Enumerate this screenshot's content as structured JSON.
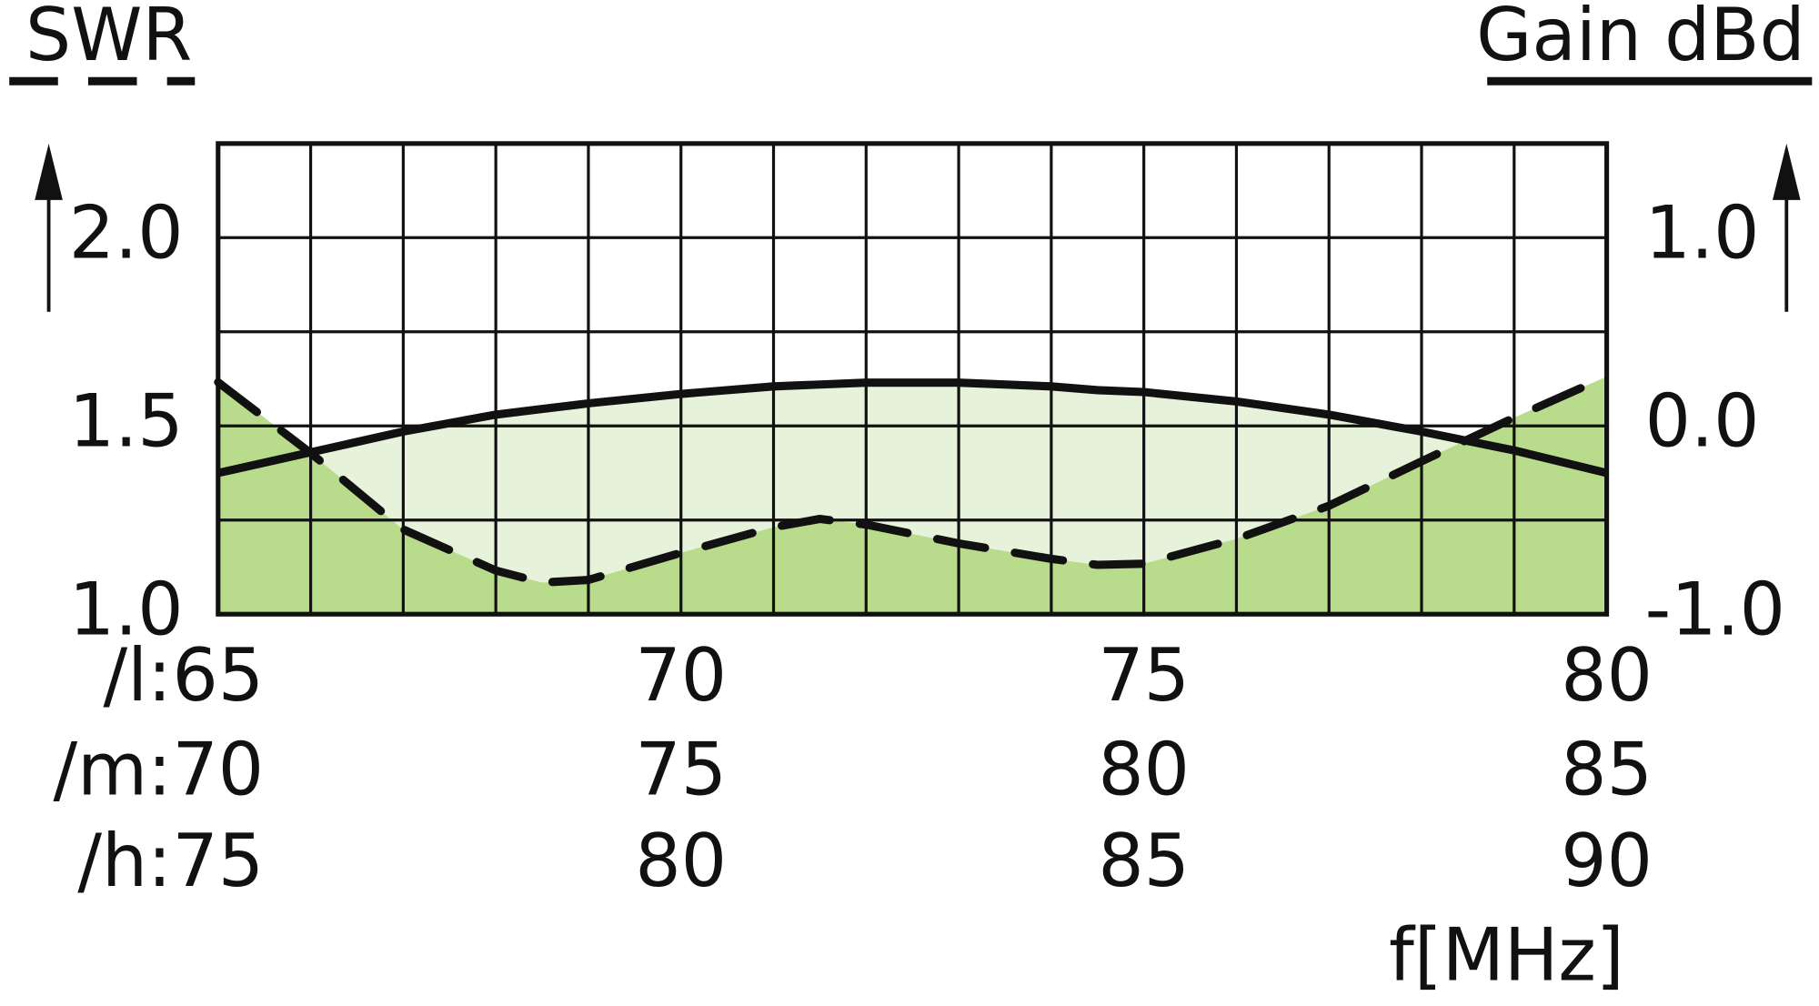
{
  "chart_data": {
    "type": "line",
    "y_title": "SWR",
    "y2_title": "Gain dBd",
    "x_title": "f[MHz]",
    "xtick_prefix": "/l:",
    "x": [
      65,
      66,
      67,
      68,
      68.5,
      69,
      70,
      71,
      71.5,
      72,
      73,
      74,
      74.5,
      75,
      76,
      77,
      78,
      79,
      80
    ],
    "xlim": [
      65,
      80
    ],
    "xticks": [
      65,
      70,
      75,
      80
    ],
    "xtick_rows": [
      {
        "prefix": "/m:",
        "labels": [
          70,
          75,
          80,
          85
        ]
      },
      {
        "prefix": "/h:",
        "labels": [
          75,
          80,
          85,
          90
        ]
      }
    ],
    "ylim": [
      1.0,
      2.25
    ],
    "yticks": [
      {
        "value": 1,
        "label": "1.0"
      },
      1.5,
      {
        "value": 2,
        "label": "2.0"
      }
    ],
    "y2lim": [
      -1.0,
      1.5
    ],
    "y2ticks": [
      {
        "value": -1,
        "label": "-1.0"
      },
      {
        "value": 0,
        "label": "0.0"
      },
      {
        "value": 1,
        "label": "1.0"
      }
    ],
    "grid": {
      "x_step": 1,
      "y_step": 0.25
    },
    "series": [
      {
        "name": "SWR",
        "color": "#111111",
        "fill": "#b8dc8c",
        "dashed": true,
        "values": [
          1.616,
          1.428,
          1.225,
          1.116,
          1.084,
          1.091,
          1.163,
          1.231,
          1.253,
          1.238,
          1.188,
          1.147,
          1.131,
          1.134,
          1.2,
          1.288,
          1.406,
          1.522,
          1.631
        ]
      },
      {
        "name": "Gain dBd",
        "color": "#111111",
        "fill": "#e6f3da",
        "dashed": false,
        "axis": "y2",
        "values": [
          -0.25,
          -0.14,
          -0.03,
          0.06,
          0.09,
          0.12,
          0.17,
          0.21,
          0.22,
          0.23,
          0.23,
          0.21,
          0.19,
          0.18,
          0.13,
          0.06,
          -0.03,
          -0.13,
          -0.25
        ]
      }
    ]
  }
}
